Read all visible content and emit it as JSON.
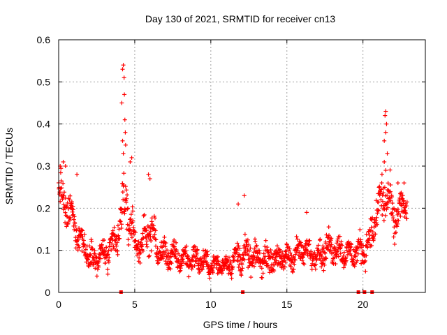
{
  "chart_data": {
    "type": "scatter",
    "marker": "+",
    "color": "#ff0000",
    "title": "Day 130 of 2021, SRMTID for receiver cn13",
    "xlabel": "GPS time / hours",
    "ylabel": "SRMTID / TECUs",
    "xlim": [
      0,
      24.1
    ],
    "ylim": [
      0,
      0.6
    ],
    "grid": true,
    "xticks": [
      0,
      5,
      10,
      15,
      20
    ],
    "yticks": [
      0,
      0.1,
      0.2,
      0.3,
      0.4,
      0.5,
      0.6
    ],
    "xtick_labels": [
      "0",
      "5",
      "10",
      "15",
      "20"
    ],
    "ytick_labels": [
      "0",
      "0.1",
      "0.2",
      "0.3",
      "0.4",
      "0.5",
      "0.6"
    ],
    "envelope": [
      {
        "x": 0.0,
        "y": 0.24,
        "spread": 0.06
      },
      {
        "x": 0.5,
        "y": 0.2,
        "spread": 0.06
      },
      {
        "x": 1.0,
        "y": 0.17,
        "spread": 0.05
      },
      {
        "x": 1.5,
        "y": 0.12,
        "spread": 0.05
      },
      {
        "x": 2.0,
        "y": 0.09,
        "spread": 0.04
      },
      {
        "x": 2.5,
        "y": 0.08,
        "spread": 0.04
      },
      {
        "x": 3.0,
        "y": 0.09,
        "spread": 0.05
      },
      {
        "x": 3.5,
        "y": 0.1,
        "spread": 0.05
      },
      {
        "x": 4.0,
        "y": 0.15,
        "spread": 0.07
      },
      {
        "x": 4.3,
        "y": 0.22,
        "spread": 0.1
      },
      {
        "x": 4.7,
        "y": 0.17,
        "spread": 0.07
      },
      {
        "x": 5.0,
        "y": 0.12,
        "spread": 0.05
      },
      {
        "x": 5.5,
        "y": 0.11,
        "spread": 0.05
      },
      {
        "x": 6.0,
        "y": 0.16,
        "spread": 0.07
      },
      {
        "x": 6.5,
        "y": 0.1,
        "spread": 0.05
      },
      {
        "x": 7.0,
        "y": 0.09,
        "spread": 0.04
      },
      {
        "x": 8.0,
        "y": 0.08,
        "spread": 0.04
      },
      {
        "x": 9.0,
        "y": 0.08,
        "spread": 0.04
      },
      {
        "x": 10.0,
        "y": 0.065,
        "spread": 0.03
      },
      {
        "x": 11.0,
        "y": 0.065,
        "spread": 0.03
      },
      {
        "x": 12.0,
        "y": 0.09,
        "spread": 0.05
      },
      {
        "x": 13.0,
        "y": 0.08,
        "spread": 0.04
      },
      {
        "x": 14.0,
        "y": 0.08,
        "spread": 0.04
      },
      {
        "x": 15.0,
        "y": 0.08,
        "spread": 0.04
      },
      {
        "x": 16.0,
        "y": 0.1,
        "spread": 0.04
      },
      {
        "x": 17.0,
        "y": 0.09,
        "spread": 0.04
      },
      {
        "x": 18.0,
        "y": 0.11,
        "spread": 0.05
      },
      {
        "x": 19.0,
        "y": 0.09,
        "spread": 0.04
      },
      {
        "x": 20.0,
        "y": 0.1,
        "spread": 0.05
      },
      {
        "x": 20.5,
        "y": 0.13,
        "spread": 0.05
      },
      {
        "x": 21.0,
        "y": 0.2,
        "spread": 0.07
      },
      {
        "x": 21.5,
        "y": 0.24,
        "spread": 0.09
      },
      {
        "x": 22.0,
        "y": 0.17,
        "spread": 0.06
      },
      {
        "x": 22.5,
        "y": 0.2,
        "spread": 0.05
      },
      {
        "x": 22.9,
        "y": 0.21,
        "spread": 0.04
      }
    ],
    "spikes": [
      {
        "x": 0.1,
        "y": 0.3
      },
      {
        "x": 0.3,
        "y": 0.31
      },
      {
        "x": 0.45,
        "y": 0.3
      },
      {
        "x": 1.2,
        "y": 0.28
      },
      {
        "x": 4.15,
        "y": 0.45
      },
      {
        "x": 4.2,
        "y": 0.53
      },
      {
        "x": 4.25,
        "y": 0.54
      },
      {
        "x": 4.3,
        "y": 0.51
      },
      {
        "x": 4.32,
        "y": 0.47
      },
      {
        "x": 4.35,
        "y": 0.41
      },
      {
        "x": 4.38,
        "y": 0.38
      },
      {
        "x": 4.2,
        "y": 0.36
      },
      {
        "x": 4.25,
        "y": 0.33
      },
      {
        "x": 4.4,
        "y": 0.35
      },
      {
        "x": 4.8,
        "y": 0.32
      },
      {
        "x": 4.7,
        "y": 0.31
      },
      {
        "x": 5.9,
        "y": 0.28
      },
      {
        "x": 6.0,
        "y": 0.27
      },
      {
        "x": 12.2,
        "y": 0.23
      },
      {
        "x": 11.8,
        "y": 0.21
      },
      {
        "x": 16.3,
        "y": 0.19
      },
      {
        "x": 21.5,
        "y": 0.43
      },
      {
        "x": 21.45,
        "y": 0.42
      },
      {
        "x": 21.55,
        "y": 0.4
      },
      {
        "x": 21.5,
        "y": 0.38
      },
      {
        "x": 21.4,
        "y": 0.36
      },
      {
        "x": 21.6,
        "y": 0.33
      },
      {
        "x": 21.4,
        "y": 0.31
      },
      {
        "x": 21.5,
        "y": 0.29
      },
      {
        "x": 22.3,
        "y": 0.26
      },
      {
        "x": 22.7,
        "y": 0.26
      }
    ],
    "baseline_marks": [
      4.1,
      12.1,
      19.7,
      20.1,
      20.6
    ],
    "points_per_hour": 60
  }
}
